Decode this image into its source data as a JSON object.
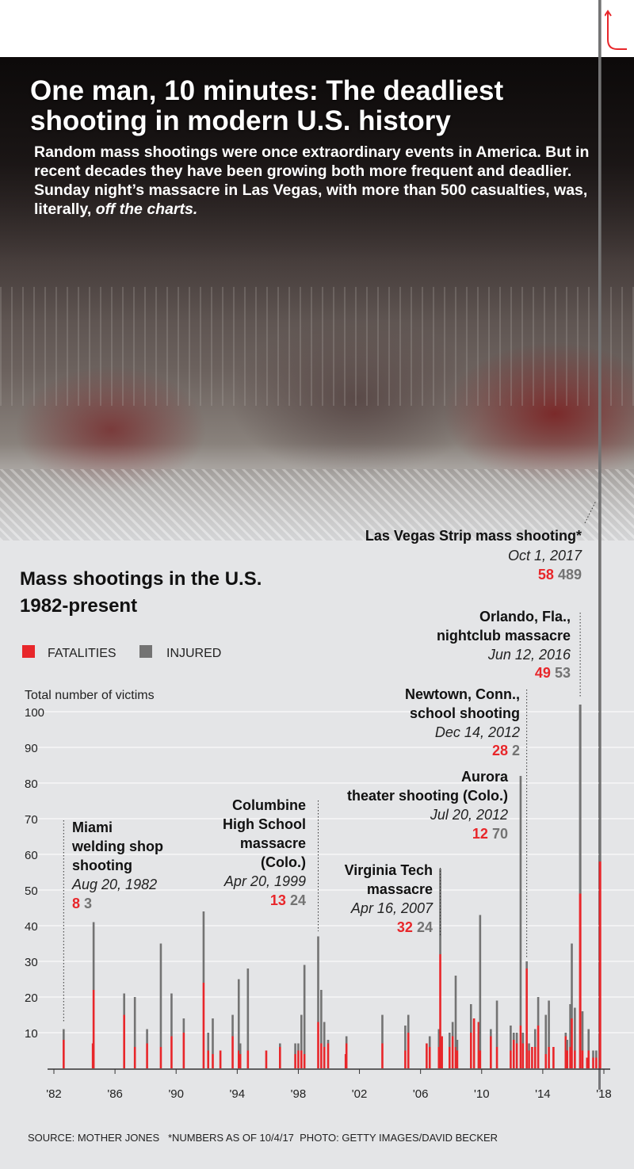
{
  "header": {
    "title": "One man, 10 minutes: The deadliest shooting in modern U.S. history",
    "intro": "Random mass shootings were once extraordinary events in America. But in recent decades they have been growing both more frequent and deadlier. Sunday night’s massacre in Las Vegas, with more than 500 casualties, was, literally,",
    "intro_emphasis": "off the charts."
  },
  "back_icon": "back-arrow-icon",
  "colors": {
    "fatalities": "#e8262a",
    "injured": "#737373",
    "background": "#e4e5e7"
  },
  "footer": {
    "source": "SOURCE: MOTHER JONES   *NUMBERS AS OF 10/4/17  PHOTO: GETTY IMAGES/DAVID BECKER"
  },
  "chart_data": {
    "type": "bar",
    "stacked": true,
    "title": "Mass shootings in the U.S.",
    "subtitle": "1982-present",
    "ylabel": "Total number of victims",
    "ylim": [
      0,
      100
    ],
    "yticks": [
      10,
      20,
      30,
      40,
      50,
      60,
      70,
      80,
      90,
      100
    ],
    "xlim": [
      1982,
      2018
    ],
    "xticks": [
      "'82",
      "'86",
      "'90",
      "'94",
      "'98",
      "'02",
      "'06",
      "'10",
      "'14",
      "'18"
    ],
    "xtick_years": [
      1982,
      1986,
      1990,
      1994,
      1998,
      2002,
      2006,
      2010,
      2014,
      2018
    ],
    "grid": true,
    "legend": {
      "position": "top-left",
      "entries": [
        "FATALITIES",
        "INJURED"
      ]
    },
    "series_names": [
      "Fatalities",
      "Injured"
    ],
    "bars": [
      {
        "x": 1982.64,
        "f": 8,
        "i": 3
      },
      {
        "x": 1984.55,
        "f": 7,
        "i": 0
      },
      {
        "x": 1984.6,
        "f": 22,
        "i": 19
      },
      {
        "x": 1986.6,
        "f": 15,
        "i": 6
      },
      {
        "x": 1987.3,
        "f": 6,
        "i": 14
      },
      {
        "x": 1988.1,
        "f": 7,
        "i": 4
      },
      {
        "x": 1989.0,
        "f": 6,
        "i": 29
      },
      {
        "x": 1989.7,
        "f": 9,
        "i": 12
      },
      {
        "x": 1990.5,
        "f": 10,
        "i": 4
      },
      {
        "x": 1991.8,
        "f": 24,
        "i": 20
      },
      {
        "x": 1992.1,
        "f": 5,
        "i": 5
      },
      {
        "x": 1992.4,
        "f": 4,
        "i": 10
      },
      {
        "x": 1992.9,
        "f": 5,
        "i": 0
      },
      {
        "x": 1993.7,
        "f": 9,
        "i": 6
      },
      {
        "x": 1994.1,
        "f": 5,
        "i": 20
      },
      {
        "x": 1994.2,
        "f": 4,
        "i": 3
      },
      {
        "x": 1994.7,
        "f": 5,
        "i": 23
      },
      {
        "x": 1995.9,
        "f": 5,
        "i": 0
      },
      {
        "x": 1996.8,
        "f": 6,
        "i": 1
      },
      {
        "x": 1997.8,
        "f": 4,
        "i": 3
      },
      {
        "x": 1998.0,
        "f": 5,
        "i": 2
      },
      {
        "x": 1998.2,
        "f": 5,
        "i": 10
      },
      {
        "x": 1998.4,
        "f": 4,
        "i": 25
      },
      {
        "x": 1999.3,
        "f": 13,
        "i": 24
      },
      {
        "x": 1999.5,
        "f": 7,
        "i": 15
      },
      {
        "x": 1999.7,
        "f": 6,
        "i": 7
      },
      {
        "x": 1999.95,
        "f": 7,
        "i": 1
      },
      {
        "x": 2001.1,
        "f": 4,
        "i": 0
      },
      {
        "x": 2001.15,
        "f": 7,
        "i": 2
      },
      {
        "x": 2003.5,
        "f": 7,
        "i": 8
      },
      {
        "x": 2005.0,
        "f": 5,
        "i": 7
      },
      {
        "x": 2005.2,
        "f": 10,
        "i": 5
      },
      {
        "x": 2006.4,
        "f": 7,
        "i": 0
      },
      {
        "x": 2006.6,
        "f": 6,
        "i": 3
      },
      {
        "x": 2007.2,
        "f": 6,
        "i": 5
      },
      {
        "x": 2007.4,
        "f": 9,
        "i": 0
      },
      {
        "x": 2007.29,
        "f": 32,
        "i": 24
      },
      {
        "x": 2007.9,
        "f": 6,
        "i": 4
      },
      {
        "x": 2008.1,
        "f": 9,
        "i": 4
      },
      {
        "x": 2008.3,
        "f": 6,
        "i": 20
      },
      {
        "x": 2008.4,
        "f": 5,
        "i": 3
      },
      {
        "x": 2009.3,
        "f": 10,
        "i": 8
      },
      {
        "x": 2009.5,
        "f": 14,
        "i": 0
      },
      {
        "x": 2009.8,
        "f": 13,
        "i": 0
      },
      {
        "x": 2009.9,
        "f": 5,
        "i": 38
      },
      {
        "x": 2010.6,
        "f": 9,
        "i": 2
      },
      {
        "x": 2011.0,
        "f": 6,
        "i": 13
      },
      {
        "x": 2011.9,
        "f": 5,
        "i": 7
      },
      {
        "x": 2012.1,
        "f": 8,
        "i": 2
      },
      {
        "x": 2012.3,
        "f": 7,
        "i": 3
      },
      {
        "x": 2012.55,
        "f": 12,
        "i": 70
      },
      {
        "x": 2012.7,
        "f": 7,
        "i": 3
      },
      {
        "x": 2012.95,
        "f": 28,
        "i": 2
      },
      {
        "x": 2013.1,
        "f": 5,
        "i": 2
      },
      {
        "x": 2013.3,
        "f": 6,
        "i": 0
      },
      {
        "x": 2013.5,
        "f": 6,
        "i": 5
      },
      {
        "x": 2013.7,
        "f": 12,
        "i": 8
      },
      {
        "x": 2014.2,
        "f": 4,
        "i": 11
      },
      {
        "x": 2014.4,
        "f": 6,
        "i": 13
      },
      {
        "x": 2014.7,
        "f": 6,
        "i": 0
      },
      {
        "x": 2015.5,
        "f": 9,
        "i": 1
      },
      {
        "x": 2015.6,
        "f": 5,
        "i": 3
      },
      {
        "x": 2015.8,
        "f": 6,
        "i": 12
      },
      {
        "x": 2015.9,
        "f": 14,
        "i": 21
      },
      {
        "x": 2016.1,
        "f": 5,
        "i": 12
      },
      {
        "x": 2016.45,
        "f": 49,
        "i": 53
      },
      {
        "x": 2016.6,
        "f": 5,
        "i": 11
      },
      {
        "x": 2016.9,
        "f": 3,
        "i": 0
      },
      {
        "x": 2017.0,
        "f": 5,
        "i": 6
      },
      {
        "x": 2017.3,
        "f": 3,
        "i": 2
      },
      {
        "x": 2017.5,
        "f": 3,
        "i": 2
      },
      {
        "x": 2017.75,
        "f": 58,
        "i": 489
      }
    ],
    "annotations": [
      {
        "name": "Las Vegas Strip mass shooting*",
        "date": "Oct 1, 2017",
        "fatalities": "58",
        "injured": "489"
      },
      {
        "name": "Orlando, Fla., nightclub massacre",
        "date": "Jun 12, 2016",
        "fatalities": "49",
        "injured": "53"
      },
      {
        "name": "Newtown, Conn., school shooting",
        "date": "Dec 14, 2012",
        "fatalities": "28",
        "injured": "2"
      },
      {
        "name": "Aurora theater shooting (Colo.)",
        "date": "Jul 20, 2012",
        "fatalities": "12",
        "injured": "70"
      },
      {
        "name": "Virginia Tech massacre",
        "date": "Apr 16, 2007",
        "fatalities": "32",
        "injured": "24"
      },
      {
        "name": "Columbine High School massacre (Colo.)",
        "date": "Apr 20, 1999",
        "fatalities": "13",
        "injured": "24"
      },
      {
        "name": "Miami welding shop shooting",
        "date": "Aug 20, 1982",
        "fatalities": "8",
        "injured": "3"
      }
    ]
  }
}
